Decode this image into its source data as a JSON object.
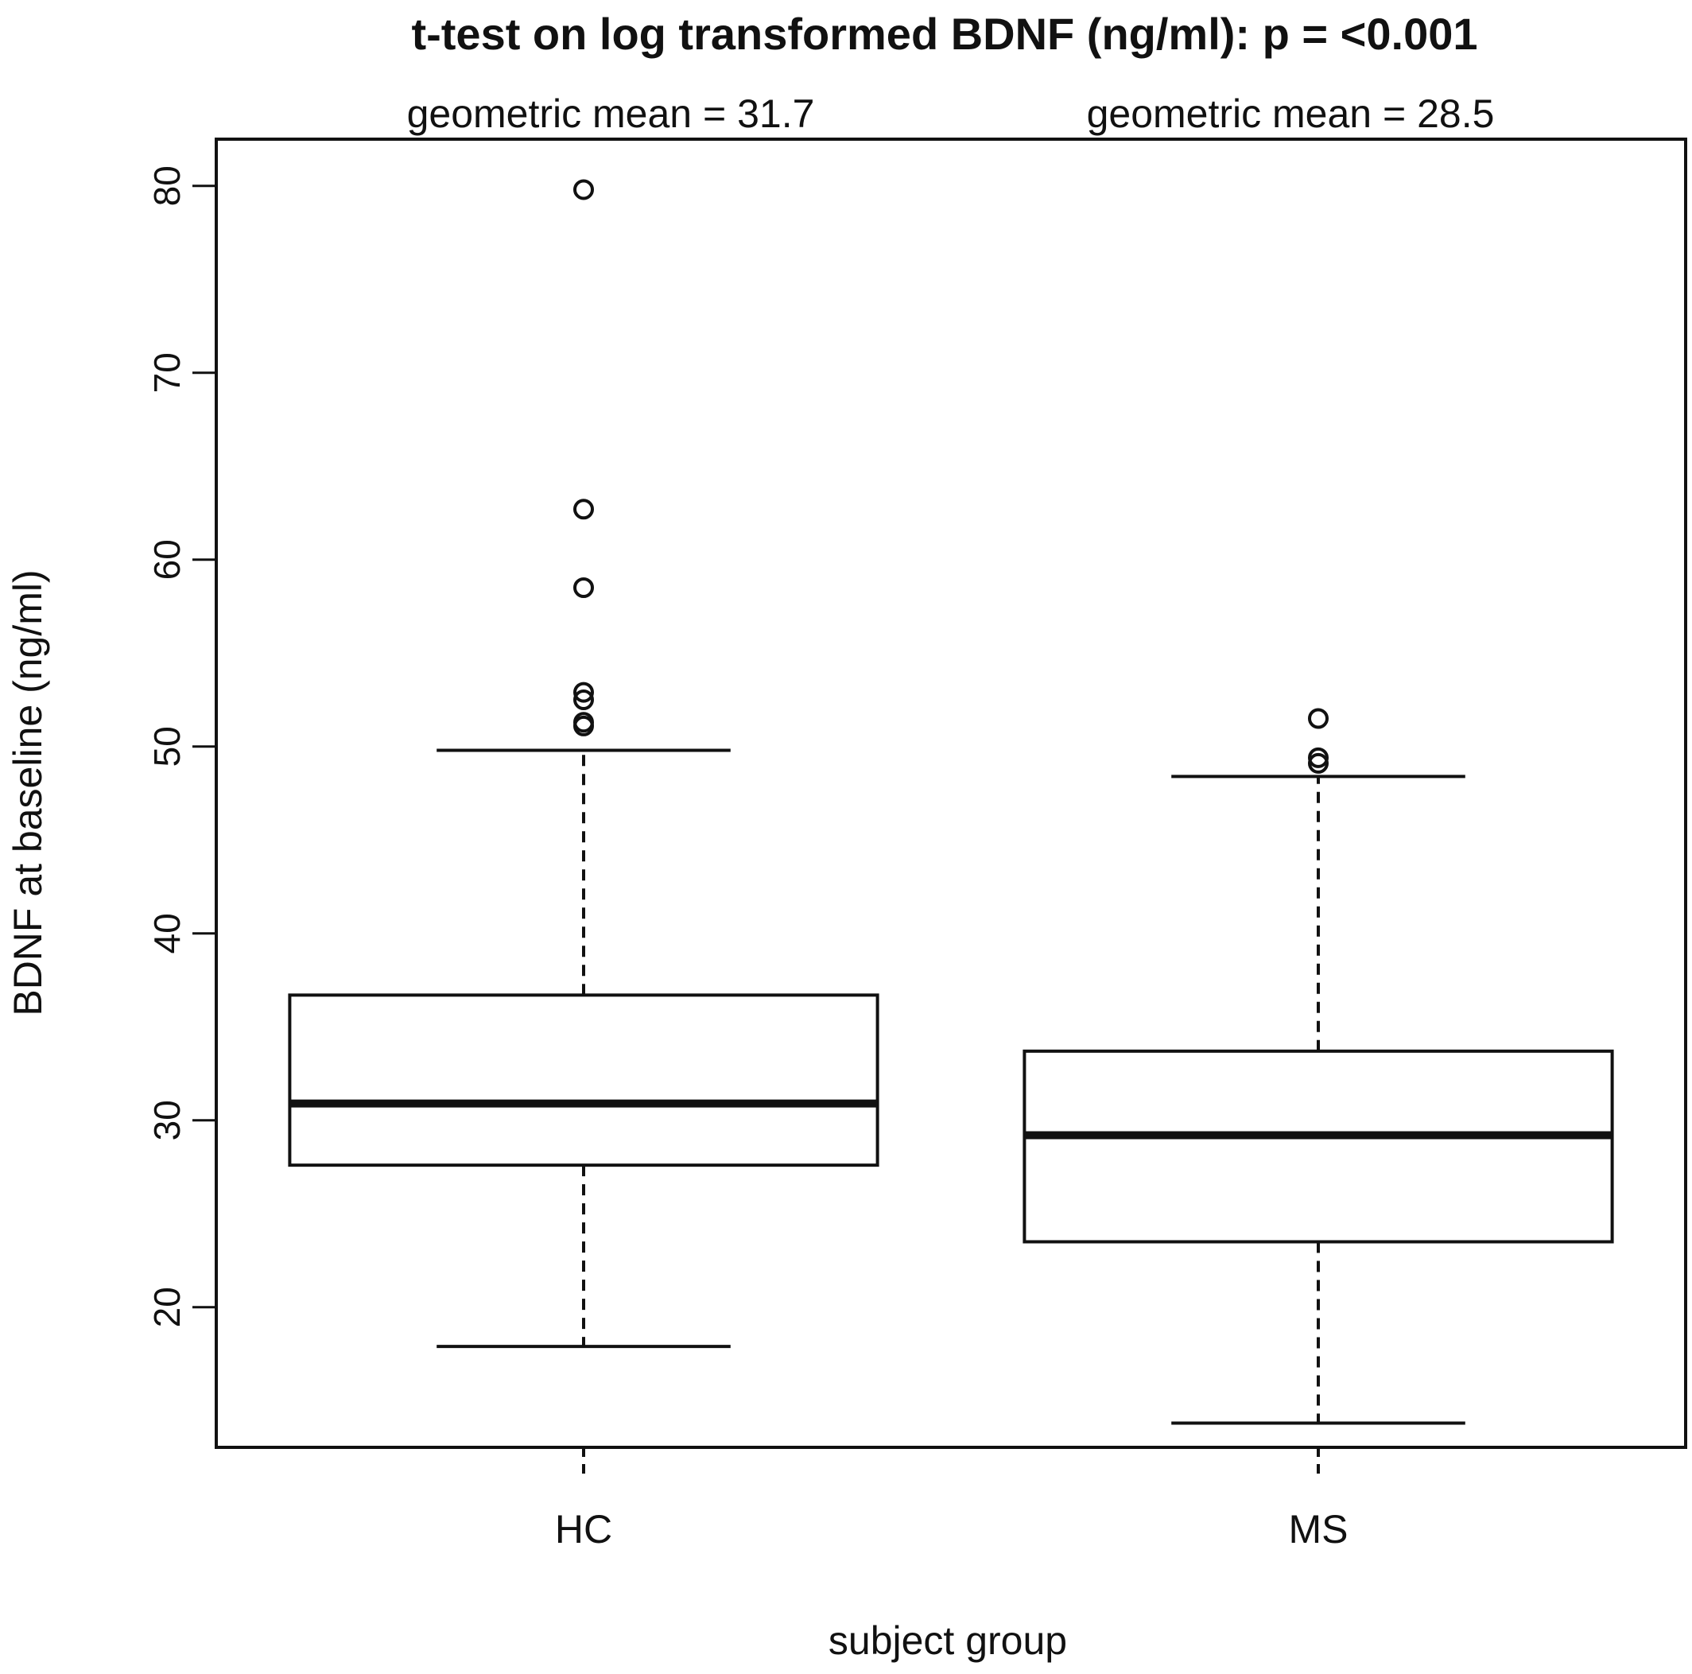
{
  "chart_data": {
    "type": "box",
    "title": "t-test on log transformed BDNF (ng/ml): p =  <0.001",
    "xlabel": "subject group",
    "ylabel": "BDNF at baseline (ng/ml)",
    "categories": [
      "HC",
      "MS"
    ],
    "group_annotations": [
      "geometric mean =  31.7",
      "geometric mean =  28.5"
    ],
    "y_ticks": [
      20,
      30,
      40,
      50,
      60,
      70,
      80
    ],
    "y_tick_labels": [
      "20",
      "30",
      "40",
      "50",
      "60",
      "70",
      "80"
    ],
    "ylim": [
      12.5,
      82.5
    ],
    "grid": false,
    "boxes": [
      {
        "group": "HC",
        "whisker_low": 17.9,
        "q1": 27.6,
        "median": 30.9,
        "q3": 36.7,
        "whisker_high": 49.8,
        "outliers": [
          79.8,
          62.7,
          58.5,
          52.9,
          52.5,
          51.3,
          51.1
        ]
      },
      {
        "group": "MS",
        "whisker_low": 13.8,
        "q1": 23.5,
        "median": 29.2,
        "q3": 33.7,
        "whisker_high": 48.4,
        "outliers": [
          51.5,
          49.4,
          49.1
        ]
      }
    ]
  }
}
